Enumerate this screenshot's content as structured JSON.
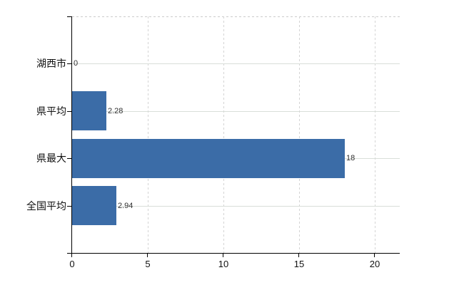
{
  "chart_data": {
    "type": "bar",
    "orientation": "horizontal",
    "categories": [
      "湖西市",
      "県平均",
      "県最大",
      "全国平均"
    ],
    "values": [
      0,
      2.28,
      18,
      2.94
    ],
    "value_labels": [
      "0",
      "2.28",
      "18",
      "2.94"
    ],
    "x_ticks": [
      0,
      5,
      10,
      15,
      20
    ],
    "xlim": [
      0,
      21.65
    ],
    "grid": "on",
    "legend": "none",
    "bar_color": "#3B6CA7",
    "h_gridline_color": "#d9ded9",
    "v_gridline_color": "#d4d4d4",
    "axis_color": "#000000",
    "value_label_color": "#303030",
    "tick_label_color": "#111111"
  }
}
